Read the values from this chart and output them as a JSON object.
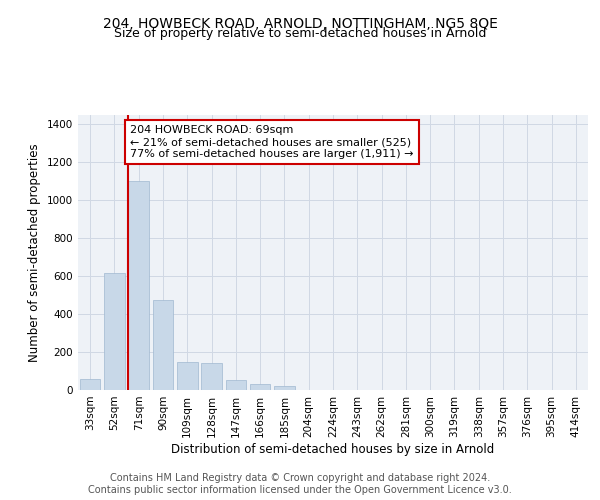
{
  "title_line1": "204, HOWBECK ROAD, ARNOLD, NOTTINGHAM, NG5 8QE",
  "title_line2": "Size of property relative to semi-detached houses in Arnold",
  "xlabel": "Distribution of semi-detached houses by size in Arnold",
  "ylabel": "Number of semi-detached properties",
  "categories": [
    "33sqm",
    "52sqm",
    "71sqm",
    "90sqm",
    "109sqm",
    "128sqm",
    "147sqm",
    "166sqm",
    "185sqm",
    "204sqm",
    "224sqm",
    "243sqm",
    "262sqm",
    "281sqm",
    "300sqm",
    "319sqm",
    "338sqm",
    "357sqm",
    "376sqm",
    "395sqm",
    "414sqm"
  ],
  "values": [
    60,
    615,
    1100,
    475,
    150,
    145,
    55,
    30,
    20,
    0,
    0,
    0,
    0,
    0,
    0,
    0,
    0,
    0,
    0,
    0,
    0
  ],
  "bar_color": "#c8d8e8",
  "bar_edge_color": "#a0b8d0",
  "vline_x": 1.575,
  "vline_color": "#cc0000",
  "annotation_text": "204 HOWBECK ROAD: 69sqm\n← 21% of semi-detached houses are smaller (525)\n77% of semi-detached houses are larger (1,911) →",
  "annotation_box_color": "white",
  "annotation_box_edge_color": "#cc0000",
  "ylim": [
    0,
    1450
  ],
  "yticks": [
    0,
    200,
    400,
    600,
    800,
    1000,
    1200,
    1400
  ],
  "footer_text": "Contains HM Land Registry data © Crown copyright and database right 2024.\nContains public sector information licensed under the Open Government Licence v3.0.",
  "bg_color": "#eef2f7",
  "grid_color": "#d0d8e4",
  "title_fontsize": 10,
  "subtitle_fontsize": 9,
  "tick_fontsize": 7.5,
  "ylabel_fontsize": 8.5,
  "xlabel_fontsize": 8.5,
  "annotation_fontsize": 8,
  "footer_fontsize": 7
}
